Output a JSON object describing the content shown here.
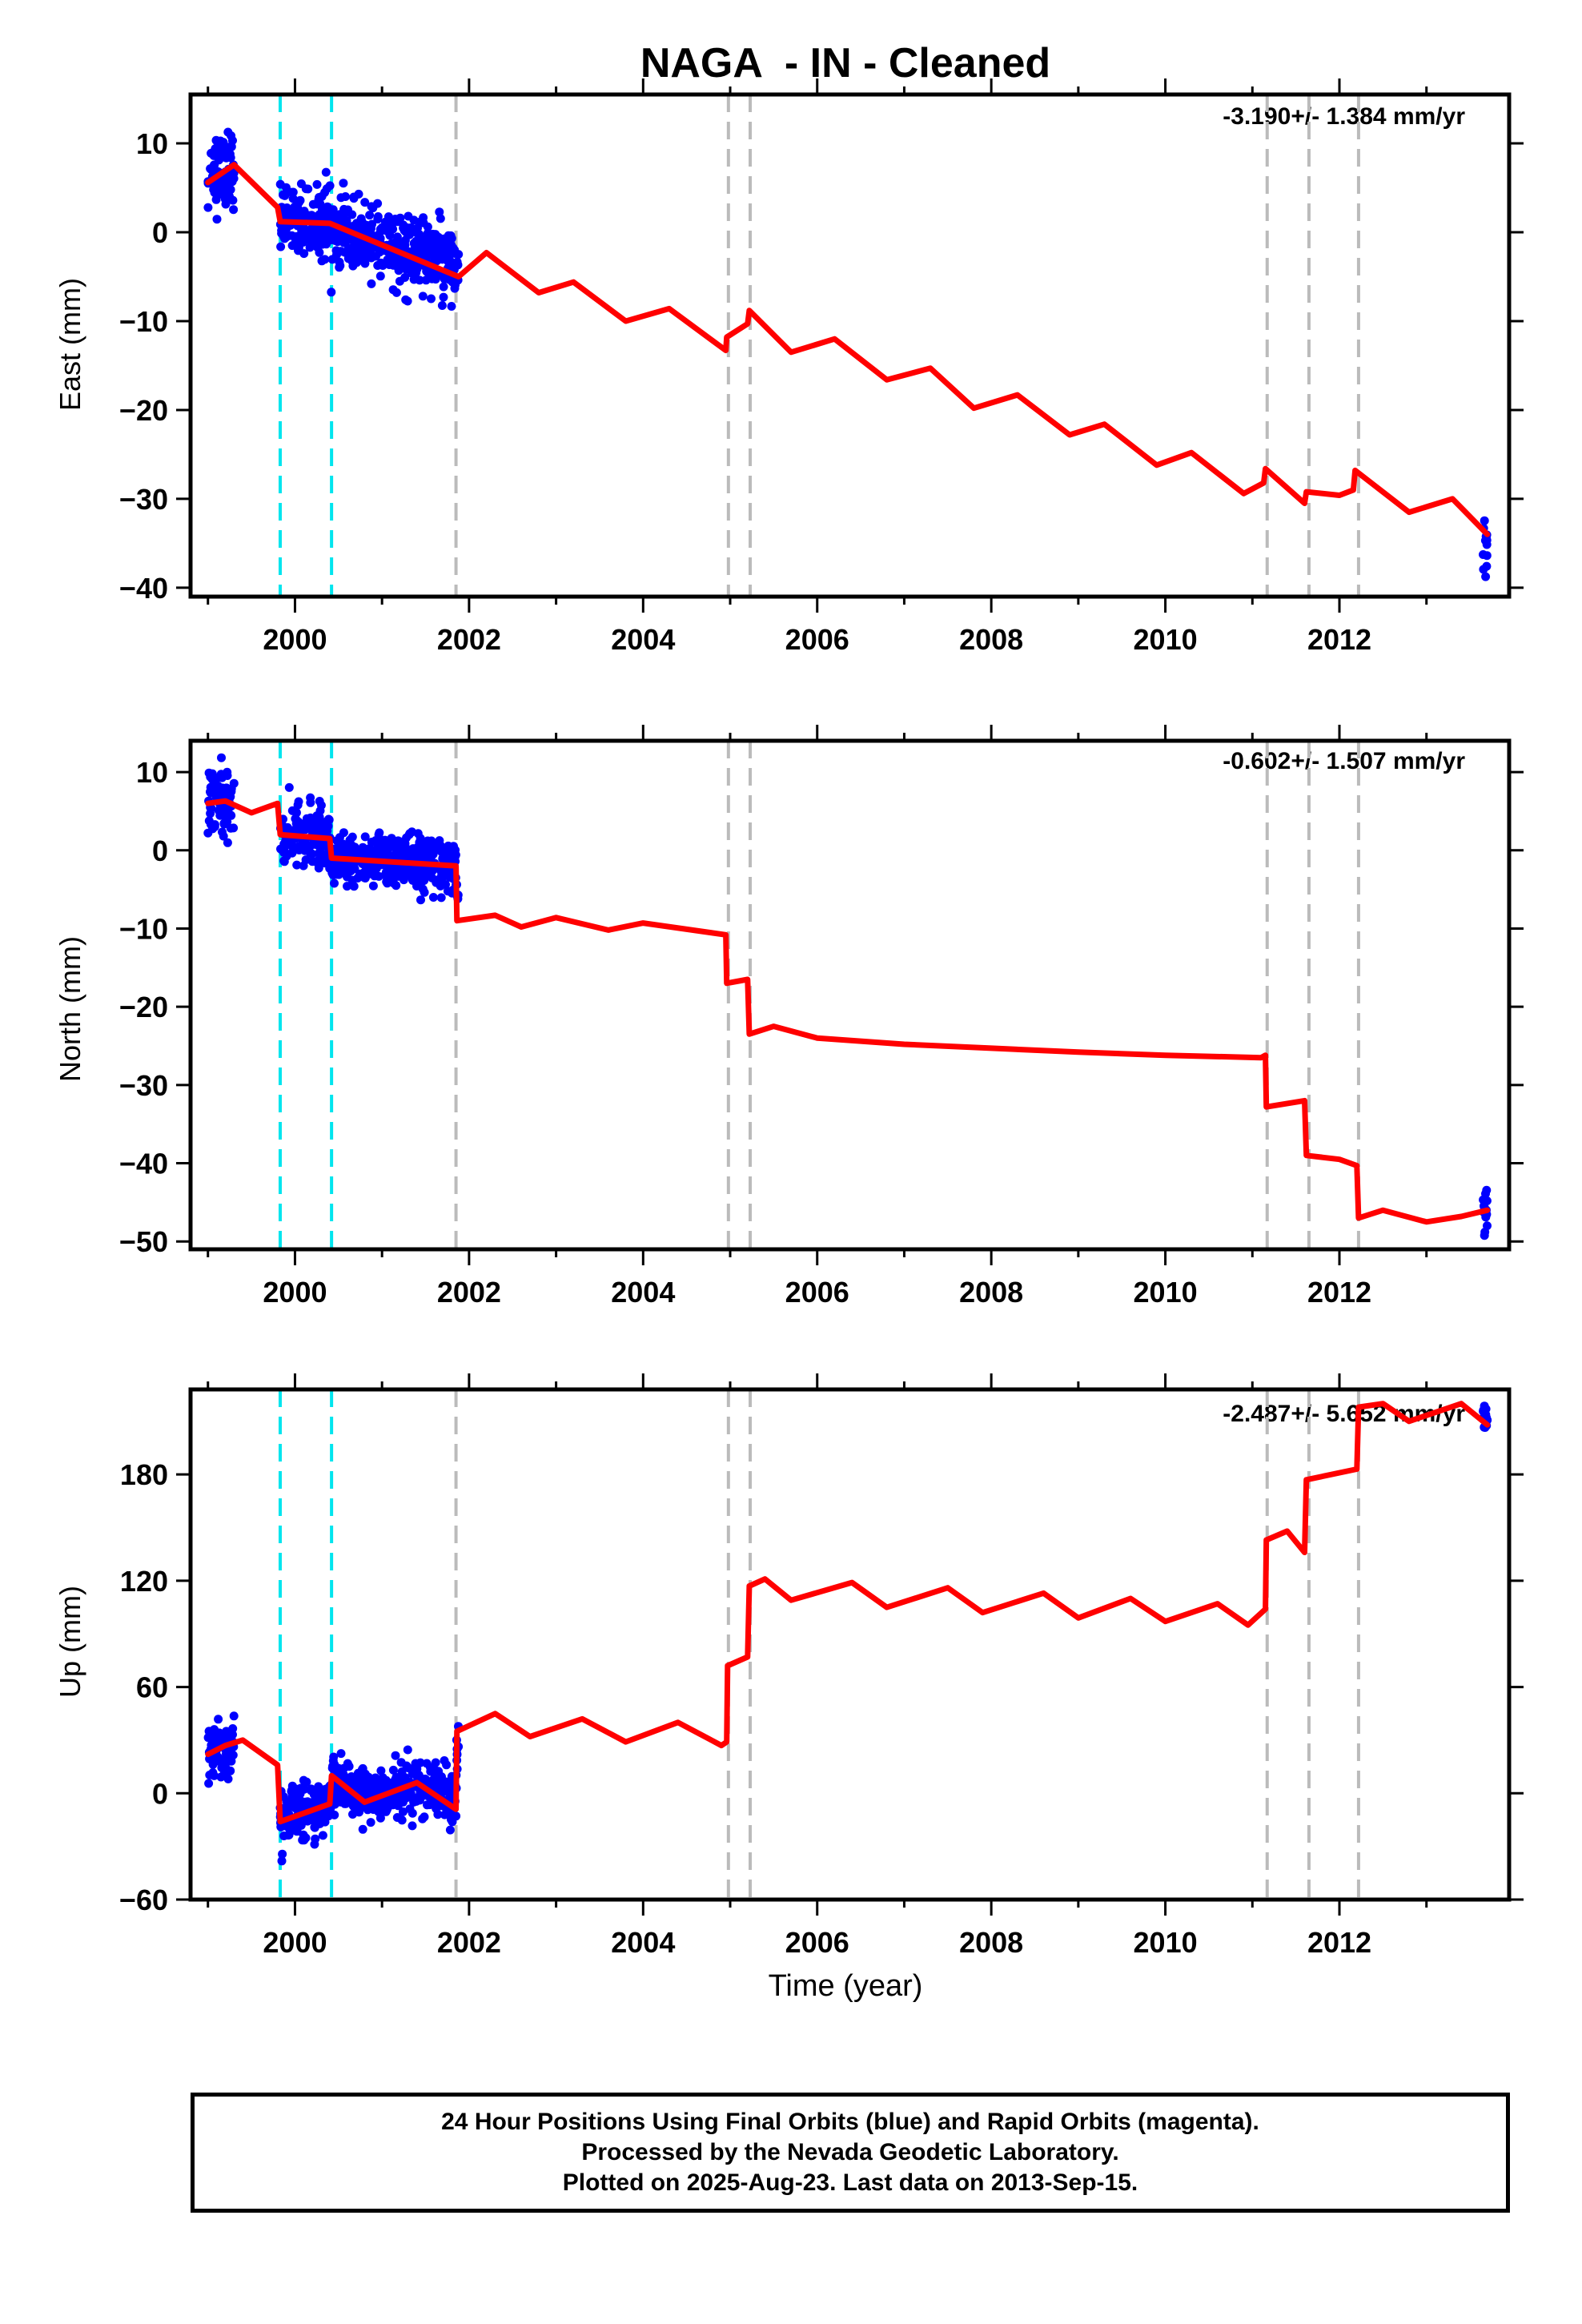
{
  "title": "NAGA  - IN - Cleaned",
  "footer": {
    "line1": "24 Hour Positions Using Final Orbits (blue) and Rapid Orbits (magenta).",
    "line2": "Processed by the Nevada Geodetic Laboratory.",
    "line3": "Plotted on 2025-Aug-23. Last data on 2013-Sep-15."
  },
  "colors": {
    "data_points": "#0000ff",
    "model_fit": "#ff0000",
    "antenna_change_lines": "#00e5ee",
    "event_lines": "#bbbbbb"
  },
  "chart_data": [
    {
      "type": "scatter",
      "component": "east",
      "ylabel": "East (mm)",
      "xlabel": "",
      "rate_label": "-3.190+/- 1.384 mm/yr",
      "xlim": [
        1998.8,
        2013.95
      ],
      "ylim": [
        -41,
        15.5
      ],
      "x_ticks": [
        2000,
        2002,
        2004,
        2006,
        2008,
        2010,
        2012
      ],
      "y_ticks": [
        10,
        0,
        -10,
        -20,
        -30,
        -40
      ],
      "grid": false,
      "data_ranges": [
        {
          "x": [
            1999.0,
            1999.3
          ],
          "center": 7.5,
          "spread": 4.0
        },
        {
          "x": [
            1999.83,
            2000.4
          ],
          "center": 1.5,
          "spread": 3.5
        },
        {
          "x": [
            2000.4,
            2001.88
          ],
          "center": -1.5,
          "spread": 3.5
        },
        {
          "x": [
            2013.65,
            2013.7
          ],
          "center": -35,
          "spread": 4.0
        }
      ],
      "model_fit": [
        [
          1999.0,
          5.6
        ],
        [
          1999.3,
          7.6
        ],
        [
          1999.8,
          2.8
        ],
        [
          1999.83,
          1.2
        ],
        [
          2000.4,
          1.0
        ],
        [
          2001.88,
          -5.0
        ],
        [
          2002.2,
          -2.3
        ],
        [
          2002.8,
          -6.8
        ],
        [
          2003.2,
          -5.6
        ],
        [
          2003.8,
          -10.0
        ],
        [
          2004.3,
          -8.6
        ],
        [
          2004.95,
          -13.3
        ],
        [
          2004.96,
          -11.8
        ],
        [
          2005.2,
          -10.3
        ],
        [
          2005.22,
          -8.8
        ],
        [
          2005.7,
          -13.5
        ],
        [
          2006.2,
          -12.0
        ],
        [
          2006.8,
          -16.6
        ],
        [
          2007.3,
          -15.3
        ],
        [
          2007.8,
          -19.8
        ],
        [
          2008.3,
          -18.3
        ],
        [
          2008.9,
          -22.8
        ],
        [
          2009.3,
          -21.6
        ],
        [
          2009.9,
          -26.2
        ],
        [
          2010.3,
          -24.8
        ],
        [
          2010.9,
          -29.4
        ],
        [
          2011.13,
          -28.2
        ],
        [
          2011.15,
          -26.6
        ],
        [
          2011.6,
          -30.5
        ],
        [
          2011.62,
          -29.2
        ],
        [
          2012.0,
          -29.6
        ],
        [
          2012.16,
          -29.0
        ],
        [
          2012.18,
          -26.8
        ],
        [
          2012.8,
          -31.5
        ],
        [
          2013.3,
          -30.0
        ],
        [
          2013.7,
          -34.0
        ]
      ],
      "event_lines": [
        2001.85,
        2004.98,
        2005.23,
        2011.17,
        2011.65,
        2012.22
      ],
      "antenna_lines": [
        1999.83,
        2000.42
      ]
    },
    {
      "type": "scatter",
      "component": "north",
      "ylabel": "North (mm)",
      "xlabel": "",
      "rate_label": "-0.602+/- 1.507 mm/yr",
      "xlim": [
        1998.8,
        2013.95
      ],
      "ylim": [
        -51,
        14
      ],
      "x_ticks": [
        2000,
        2002,
        2004,
        2006,
        2008,
        2010,
        2012
      ],
      "y_ticks": [
        10,
        0,
        -10,
        -20,
        -30,
        -40,
        -50
      ],
      "grid": false,
      "data_ranges": [
        {
          "x": [
            1999.0,
            1999.3
          ],
          "center": 6.5,
          "spread": 4.0
        },
        {
          "x": [
            1999.83,
            2000.4
          ],
          "center": 2.0,
          "spread": 3.5
        },
        {
          "x": [
            2000.4,
            2001.88
          ],
          "center": -1.5,
          "spread": 3.0
        },
        {
          "x": [
            2013.65,
            2013.7
          ],
          "center": -47,
          "spread": 3.0
        }
      ],
      "model_fit": [
        [
          1999.0,
          6.0
        ],
        [
          1999.2,
          6.3
        ],
        [
          1999.5,
          4.8
        ],
        [
          1999.8,
          6.0
        ],
        [
          1999.83,
          2.0
        ],
        [
          2000.4,
          1.5
        ],
        [
          2000.42,
          -1.0
        ],
        [
          2001.85,
          -2.0
        ],
        [
          2001.86,
          -9.0
        ],
        [
          2002.3,
          -8.3
        ],
        [
          2002.6,
          -9.8
        ],
        [
          2003.0,
          -8.6
        ],
        [
          2003.6,
          -10.2
        ],
        [
          2004.0,
          -9.3
        ],
        [
          2004.95,
          -10.8
        ],
        [
          2004.96,
          -17.0
        ],
        [
          2005.2,
          -16.5
        ],
        [
          2005.22,
          -23.5
        ],
        [
          2005.5,
          -22.5
        ],
        [
          2006.0,
          -24.0
        ],
        [
          2007.0,
          -24.8
        ],
        [
          2008.0,
          -25.3
        ],
        [
          2009.0,
          -25.8
        ],
        [
          2010.0,
          -26.2
        ],
        [
          2011.1,
          -26.5
        ],
        [
          2011.15,
          -26.2
        ],
        [
          2011.16,
          -32.8
        ],
        [
          2011.6,
          -32.0
        ],
        [
          2011.62,
          -39.0
        ],
        [
          2012.0,
          -39.5
        ],
        [
          2012.2,
          -40.3
        ],
        [
          2012.22,
          -47.0
        ],
        [
          2012.5,
          -46.0
        ],
        [
          2013.0,
          -47.5
        ],
        [
          2013.4,
          -46.8
        ],
        [
          2013.7,
          -46.0
        ]
      ],
      "event_lines": [
        2001.85,
        2004.98,
        2005.23,
        2011.17,
        2011.65,
        2012.22
      ],
      "antenna_lines": [
        1999.83,
        2000.42
      ]
    },
    {
      "type": "scatter",
      "component": "up",
      "ylabel": "Up (mm)",
      "xlabel": "Time (year)",
      "rate_label": "-2.487+/- 5.652 mm/yr",
      "xlim": [
        1998.8,
        2013.95
      ],
      "ylim": [
        -60,
        228
      ],
      "x_ticks": [
        2000,
        2002,
        2004,
        2006,
        2008,
        2010,
        2012
      ],
      "y_ticks": [
        180,
        120,
        60,
        0,
        -60
      ],
      "grid": false,
      "data_ranges": [
        {
          "x": [
            1999.0,
            1999.3
          ],
          "center": 25,
          "spread": 14
        },
        {
          "x": [
            1999.83,
            2000.4
          ],
          "center": -8,
          "spread": 14
        },
        {
          "x": [
            2000.4,
            2001.88
          ],
          "center": 3,
          "spread": 14
        },
        {
          "x": [
            2013.65,
            2013.7
          ],
          "center": 212,
          "spread": 8
        }
      ],
      "model_fit": [
        [
          1999.0,
          22
        ],
        [
          1999.2,
          27
        ],
        [
          1999.4,
          30
        ],
        [
          1999.8,
          16
        ],
        [
          1999.83,
          -16
        ],
        [
          2000.4,
          -6
        ],
        [
          2000.42,
          10
        ],
        [
          2000.8,
          -5
        ],
        [
          2001.4,
          6
        ],
        [
          2001.85,
          -9
        ],
        [
          2001.86,
          35
        ],
        [
          2002.3,
          45
        ],
        [
          2002.7,
          32
        ],
        [
          2003.3,
          42
        ],
        [
          2003.8,
          29
        ],
        [
          2004.4,
          40
        ],
        [
          2004.9,
          27
        ],
        [
          2004.96,
          29
        ],
        [
          2004.97,
          72
        ],
        [
          2005.2,
          77
        ],
        [
          2005.22,
          117
        ],
        [
          2005.4,
          121
        ],
        [
          2005.7,
          109
        ],
        [
          2006.4,
          119
        ],
        [
          2006.8,
          105
        ],
        [
          2007.5,
          116
        ],
        [
          2007.9,
          102
        ],
        [
          2008.6,
          113
        ],
        [
          2009.0,
          99
        ],
        [
          2009.6,
          110
        ],
        [
          2010.0,
          97
        ],
        [
          2010.6,
          107
        ],
        [
          2010.95,
          95
        ],
        [
          2011.15,
          104
        ],
        [
          2011.16,
          143
        ],
        [
          2011.4,
          148
        ],
        [
          2011.6,
          136
        ],
        [
          2011.62,
          177
        ],
        [
          2012.2,
          183
        ],
        [
          2012.22,
          218
        ],
        [
          2012.5,
          220
        ],
        [
          2012.8,
          210
        ],
        [
          2013.4,
          220
        ],
        [
          2013.7,
          208
        ]
      ],
      "event_lines": [
        2001.85,
        2004.98,
        2005.23,
        2011.17,
        2011.65,
        2012.22
      ],
      "antenna_lines": [
        1999.83,
        2000.42
      ]
    }
  ]
}
